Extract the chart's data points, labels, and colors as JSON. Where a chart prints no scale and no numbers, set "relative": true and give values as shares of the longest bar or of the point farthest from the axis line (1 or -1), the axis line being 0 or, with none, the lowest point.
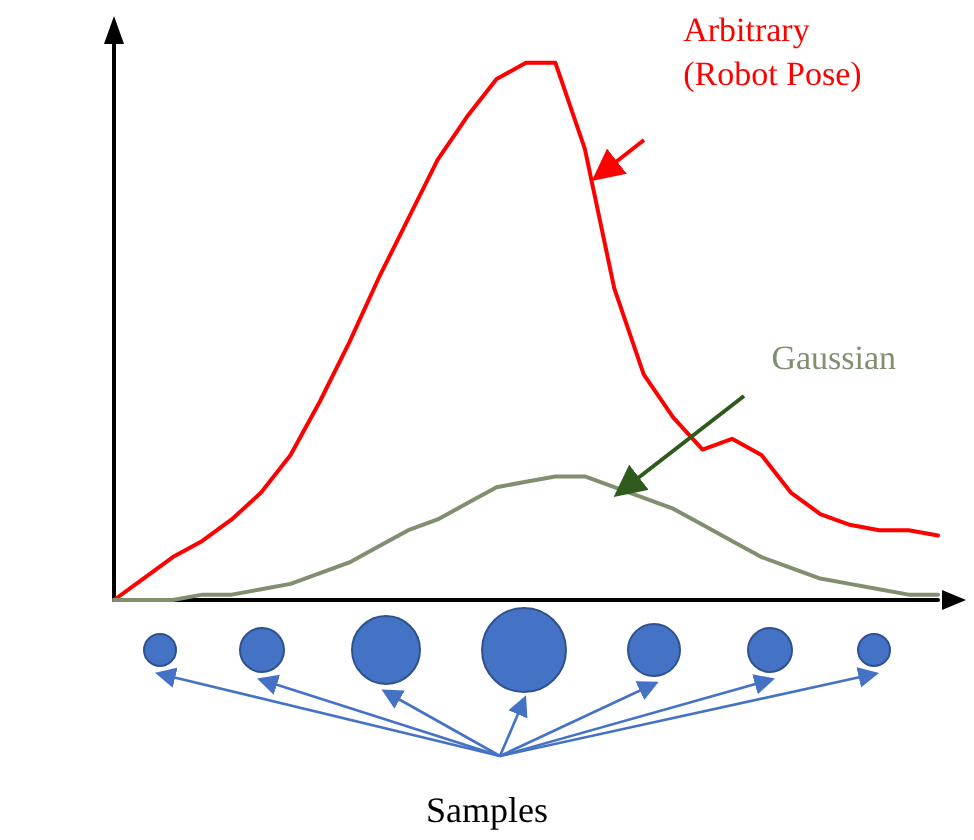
{
  "chart_data": {
    "type": "line",
    "relative": true,
    "grid": false,
    "legend": false,
    "marker": "none",
    "line_style": "solid",
    "categories": [
      null,
      null,
      null,
      null,
      null,
      null,
      null,
      null,
      null,
      null,
      null,
      null,
      null,
      null,
      null,
      null,
      null,
      null,
      null,
      null,
      null,
      null,
      null,
      null,
      null,
      null,
      null,
      null,
      null
    ],
    "series": [
      {
        "name": "Arbitrary (Robot Pose)",
        "color": "#ff0000",
        "values": [
          0,
          0.04,
          0.08,
          0.11,
          0.15,
          0.2,
          0.27,
          0.37,
          0.48,
          0.6,
          0.71,
          0.82,
          0.9,
          0.97,
          1,
          1,
          0.84,
          0.58,
          0.42,
          0.34,
          0.28,
          0.3,
          0.27,
          0.2,
          0.16,
          0.14,
          0.13,
          0.13,
          0.12
        ]
      },
      {
        "name": "Gaussian",
        "color": "#7f8f6f",
        "values": [
          0,
          0,
          0,
          0.01,
          0.01,
          0.02,
          0.03,
          0.05,
          0.07,
          0.1,
          0.13,
          0.15,
          0.18,
          0.21,
          0.22,
          0.23,
          0.23,
          0.21,
          0.19,
          0.17,
          0.14,
          0.11,
          0.08,
          0.06,
          0.04,
          0.03,
          0.02,
          0.01,
          0.01
        ]
      }
    ],
    "annotations": [
      "Samples"
    ]
  }
}
